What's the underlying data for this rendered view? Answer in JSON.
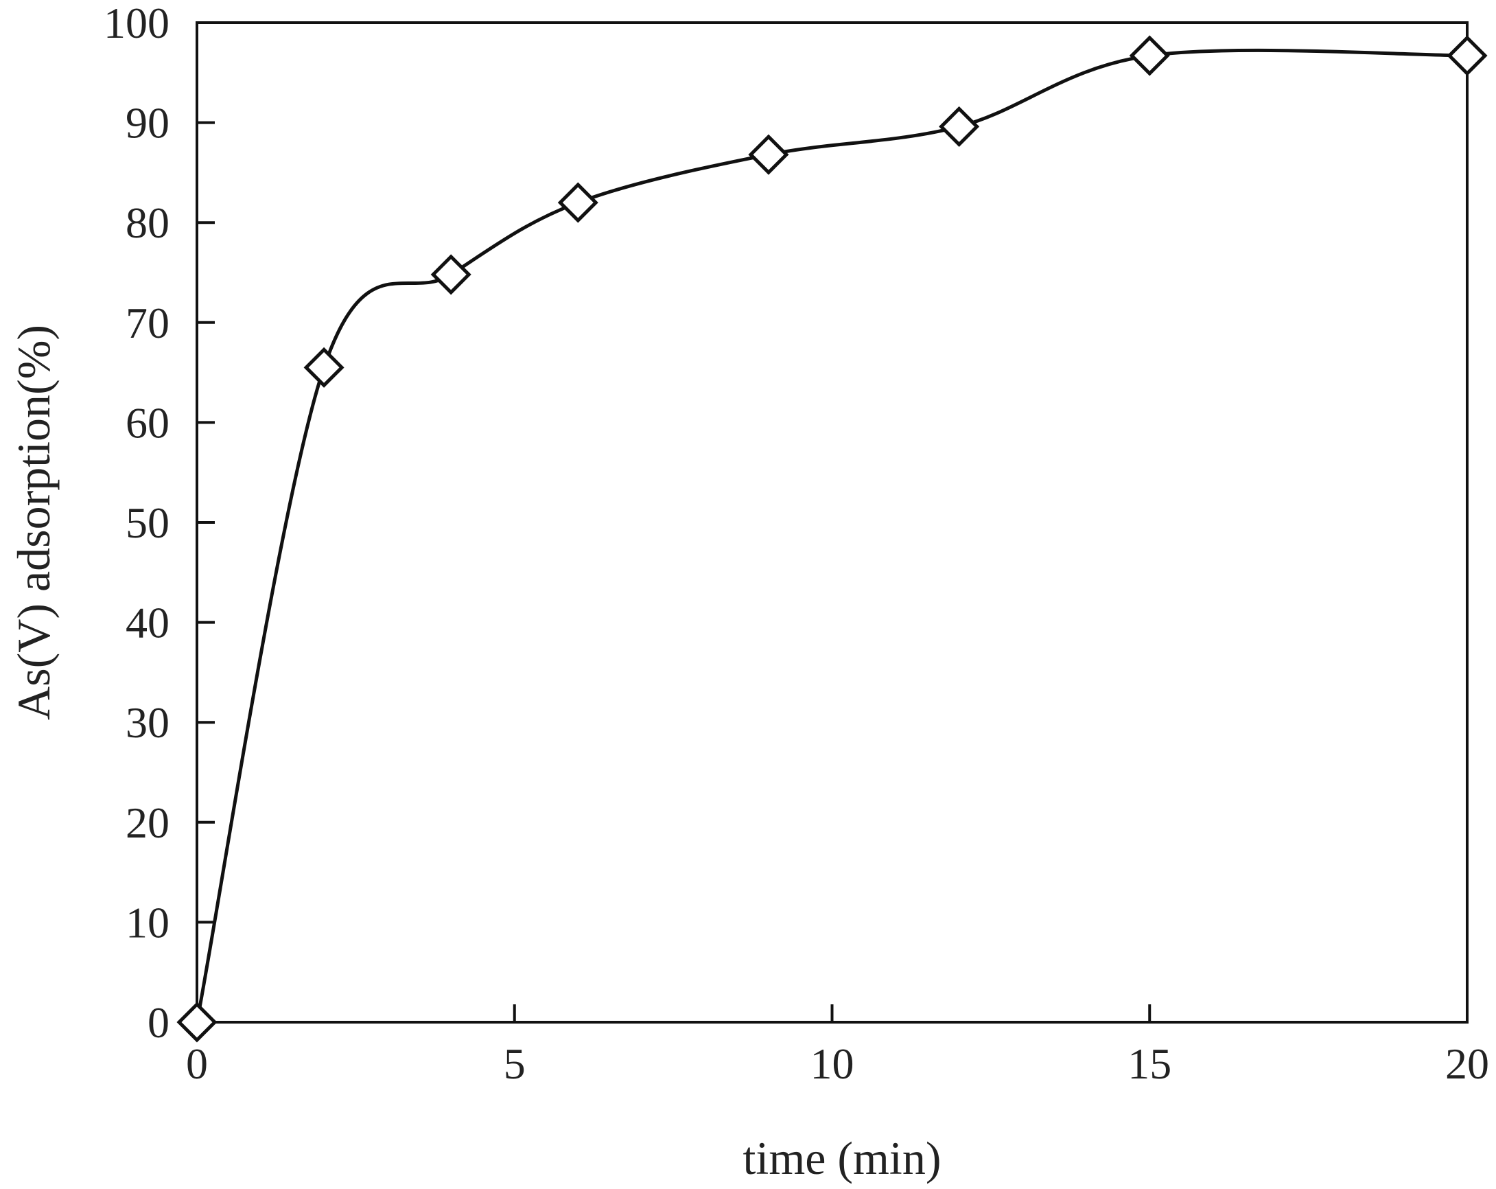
{
  "chart_data": {
    "type": "line",
    "title": "",
    "xlabel": "time (min)",
    "ylabel": "As(V) adsorption(%)",
    "xlim": [
      0,
      20
    ],
    "ylim": [
      0,
      100
    ],
    "x_ticks": [
      0,
      5,
      10,
      15,
      20
    ],
    "y_ticks": [
      0,
      10,
      20,
      30,
      40,
      50,
      60,
      70,
      80,
      90,
      100
    ],
    "grid": false,
    "legend": "none",
    "line_color": "#111111",
    "marker": "open-diamond",
    "series": [
      {
        "x": [
          0,
          2,
          4,
          6,
          9,
          12,
          15,
          20
        ],
        "y": [
          0,
          65.5,
          74.8,
          82,
          86.8,
          89.6,
          96.7,
          96.7
        ]
      }
    ]
  }
}
